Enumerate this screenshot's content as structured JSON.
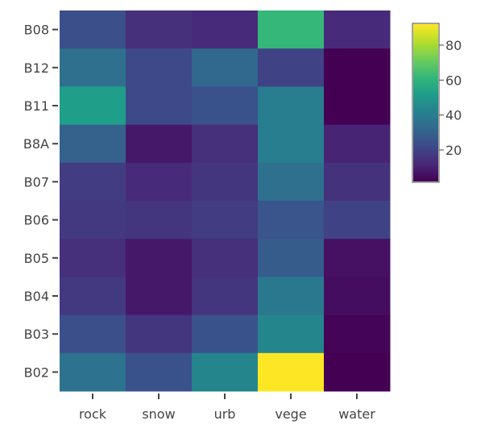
{
  "chart_data": {
    "type": "heatmap",
    "title": "",
    "xlabel": "",
    "ylabel": "",
    "x_categories": [
      "rock",
      "snow",
      "urb",
      "vege",
      "water"
    ],
    "y_categories": [
      "B08",
      "B12",
      "B11",
      "B8A",
      "B07",
      "B06",
      "B05",
      "B04",
      "B03",
      "B02"
    ],
    "values": [
      [
        24,
        14,
        13,
        62,
        13
      ],
      [
        35,
        22,
        32,
        20,
        2
      ],
      [
        52,
        22,
        25,
        40,
        2
      ],
      [
        30,
        8,
        14,
        40,
        11
      ],
      [
        18,
        13,
        16,
        35,
        15
      ],
      [
        17,
        16,
        18,
        26,
        20
      ],
      [
        14,
        8,
        14,
        28,
        6
      ],
      [
        17,
        8,
        16,
        38,
        5
      ],
      [
        24,
        16,
        25,
        43,
        3
      ],
      [
        36,
        25,
        43,
        92,
        2
      ]
    ],
    "colorscale": "Viridis",
    "zmin": 2,
    "zmax": 92,
    "colorbar": {
      "ticks": [
        20,
        40,
        60,
        80
      ]
    }
  }
}
